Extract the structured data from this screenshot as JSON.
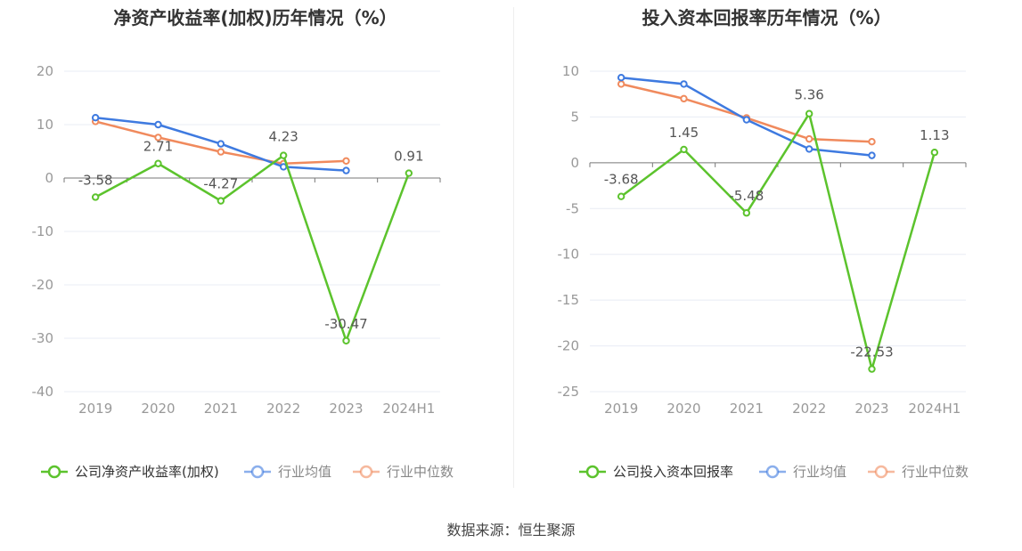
{
  "colors": {
    "company": "#5cc32d",
    "average": "#3e7ae0",
    "median": "#f08a5d",
    "axis": "#999999",
    "grid": "#e8ecf4",
    "zero": "#777777",
    "label": "#555555"
  },
  "footer": {
    "source": "数据来源：恒生聚源"
  },
  "chart_data": [
    {
      "type": "line",
      "title": "净资产收益率(加权)历年情况（%）",
      "categories": [
        "2019",
        "2020",
        "2021",
        "2022",
        "2023",
        "2024H1"
      ],
      "ylim": [
        -40,
        20
      ],
      "yticks": [
        20,
        10,
        0,
        -10,
        -20,
        -30,
        -40
      ],
      "ytick_labels": [
        "20",
        "10",
        "0",
        "-10",
        "-20",
        "-30",
        "-40"
      ],
      "legend_position": "bottom",
      "series": [
        {
          "name": "公司净资产收益率(加权)",
          "role": "company",
          "values": [
            -3.58,
            2.71,
            -4.27,
            4.23,
            -30.47,
            0.91
          ],
          "labels": [
            "-3.58",
            "2.71",
            "-4.27",
            "4.23",
            "-30.47",
            "0.91"
          ]
        },
        {
          "name": "行业均值",
          "role": "average",
          "values": [
            11.3,
            10.0,
            6.4,
            2.1,
            1.4,
            null
          ]
        },
        {
          "name": "行业中位数",
          "role": "median",
          "values": [
            10.6,
            7.6,
            4.9,
            2.7,
            3.2,
            null
          ]
        }
      ]
    },
    {
      "type": "line",
      "title": "投入资本回报率历年情况（%）",
      "categories": [
        "2019",
        "2020",
        "2021",
        "2022",
        "2023",
        "2024H1"
      ],
      "ylim": [
        -25,
        10
      ],
      "yticks": [
        10,
        5,
        0,
        -5,
        -10,
        -15,
        -20,
        -25
      ],
      "ytick_labels": [
        "10",
        "5",
        "0",
        "-5",
        "-10",
        "-15",
        "-20",
        "-25"
      ],
      "legend_position": "bottom",
      "series": [
        {
          "name": "公司投入资本回报率",
          "role": "company",
          "values": [
            -3.68,
            1.45,
            -5.48,
            5.36,
            -22.53,
            1.13
          ],
          "labels": [
            "-3.68",
            "1.45",
            "-5.48",
            "5.36",
            "-22.53",
            "1.13"
          ]
        },
        {
          "name": "行业均值",
          "role": "average",
          "values": [
            9.3,
            8.6,
            4.7,
            1.5,
            0.8,
            null
          ]
        },
        {
          "name": "行业中位数",
          "role": "median",
          "values": [
            8.6,
            7.0,
            4.9,
            2.6,
            2.3,
            null
          ]
        }
      ]
    }
  ]
}
